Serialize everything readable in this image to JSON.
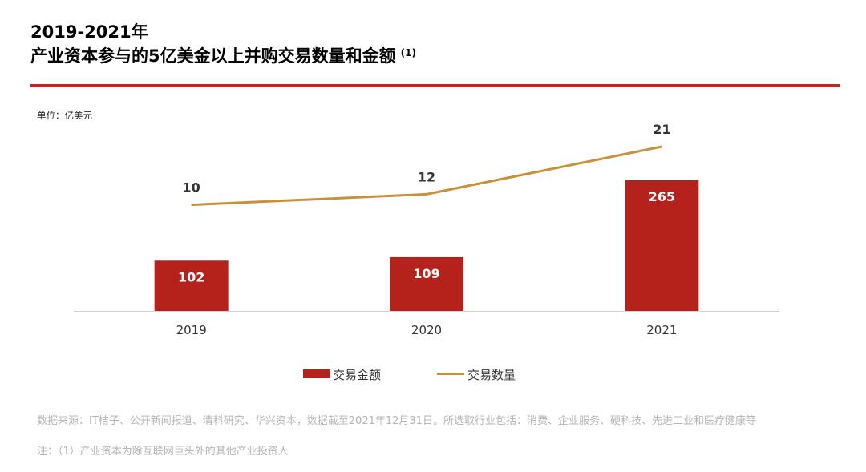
{
  "title": {
    "line1": "2019-2021年",
    "line2": "产业资本参与的5亿美金以上并购交易数量和金额",
    "note": "(1)"
  },
  "unit_label": "单位：亿美元",
  "chart_data": {
    "type": "bar",
    "categories": [
      "2019",
      "2020",
      "2021"
    ],
    "series": [
      {
        "name": "交易金额",
        "type": "bar",
        "values": [
          102,
          109,
          265
        ],
        "color": "#b5221b",
        "label_color": "#ffffff"
      },
      {
        "name": "交易数量",
        "type": "line",
        "values": [
          10,
          12,
          21
        ],
        "color": "#c8923a"
      }
    ],
    "legend_position": "bottom",
    "grid": false
  },
  "footnotes": {
    "source": "数据来源：IT桔子、公开新闻报道、清科研究、华兴资本，数据截至2021年12月31日。所选取行业包括：消费、企业服务、硬科技、先进工业和医疗健康等",
    "note": "注：（1）产业资本为除互联网巨头外的其他产业投资人"
  }
}
